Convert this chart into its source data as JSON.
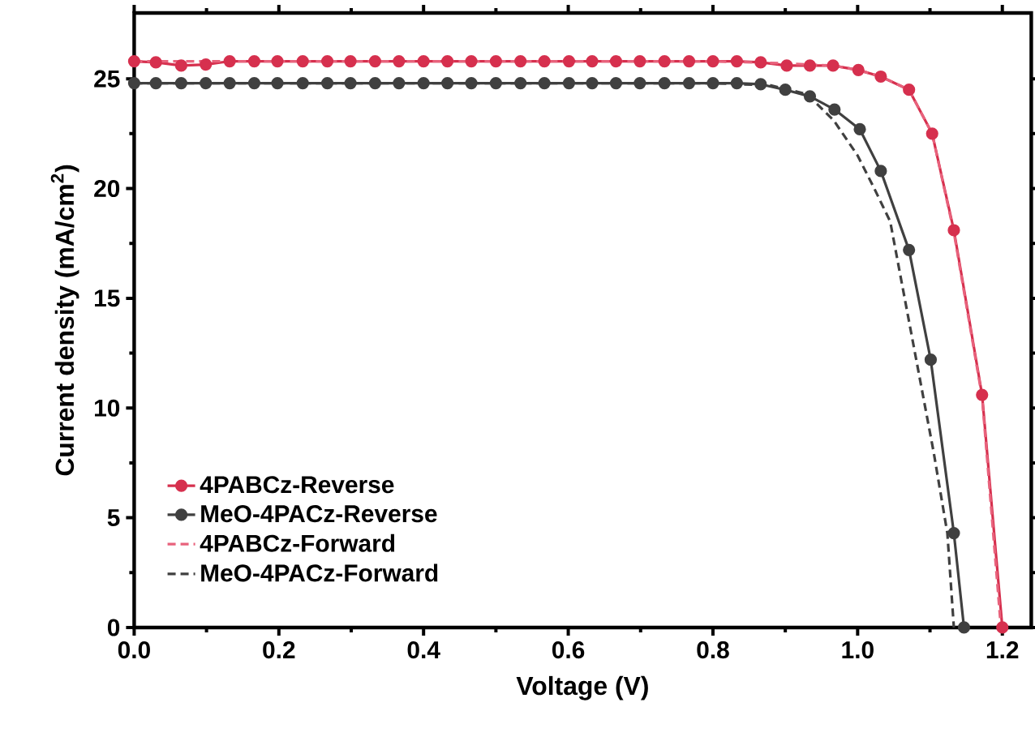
{
  "chart_data": {
    "type": "line",
    "xlabel": "Voltage (V)",
    "ylabel": "Current density (mA/cm$^{2}$)",
    "xlim": [
      0,
      1.24
    ],
    "ylim": [
      0,
      28
    ],
    "xticks": [
      {
        "value": 0,
        "label": "0.0"
      },
      0.2,
      0.4,
      0.6,
      0.8,
      {
        "value": 1,
        "label": "1.0"
      },
      1.2
    ],
    "yticks": [
      0,
      5,
      10,
      15,
      20,
      25
    ],
    "legend": "bottom left",
    "grid": false,
    "series": [
      {
        "name": "4PABCz-Reverse",
        "color": "#d6304e",
        "marker": "circle",
        "line_style": "solid",
        "x": [
          0,
          0.03,
          0.065,
          0.099,
          0.132,
          0.166,
          0.198,
          0.233,
          0.267,
          0.299,
          0.333,
          0.366,
          0.4,
          0.433,
          0.466,
          0.5,
          0.534,
          0.567,
          0.601,
          0.633,
          0.666,
          0.699,
          0.733,
          0.767,
          0.8,
          0.833,
          0.866,
          0.902,
          0.934,
          0.966,
          1.001,
          1.032,
          1.071,
          1.103,
          1.133,
          1.172,
          1.2
        ],
        "values": [
          25.8,
          25.75,
          25.6,
          25.65,
          25.8,
          25.8,
          25.8,
          25.8,
          25.8,
          25.8,
          25.8,
          25.8,
          25.8,
          25.8,
          25.8,
          25.8,
          25.8,
          25.8,
          25.8,
          25.8,
          25.8,
          25.8,
          25.8,
          25.8,
          25.8,
          25.8,
          25.75,
          25.6,
          25.6,
          25.6,
          25.4,
          25.1,
          24.5,
          22.5,
          18.1,
          10.6,
          0
        ]
      },
      {
        "name": "MeO-4PACz-Reverse",
        "color": "#404040",
        "marker": "circle",
        "line_style": "solid",
        "x": [
          0,
          0.03,
          0.065,
          0.099,
          0.132,
          0.166,
          0.198,
          0.233,
          0.267,
          0.299,
          0.333,
          0.366,
          0.4,
          0.433,
          0.466,
          0.5,
          0.534,
          0.567,
          0.601,
          0.633,
          0.666,
          0.699,
          0.733,
          0.767,
          0.8,
          0.833,
          0.866,
          0.9,
          0.934,
          0.968,
          1.003,
          1.032,
          1.071,
          1.101,
          1.133,
          1.147
        ],
        "values": [
          24.8,
          24.8,
          24.8,
          24.8,
          24.8,
          24.8,
          24.8,
          24.8,
          24.8,
          24.8,
          24.8,
          24.8,
          24.8,
          24.8,
          24.8,
          24.8,
          24.8,
          24.8,
          24.8,
          24.8,
          24.8,
          24.8,
          24.8,
          24.8,
          24.8,
          24.8,
          24.75,
          24.5,
          24.2,
          23.6,
          22.7,
          20.8,
          17.2,
          12.2,
          4.3,
          0
        ]
      },
      {
        "name": "4PABCz-Forward",
        "color": "#e8627c",
        "marker": "none",
        "line_style": "dashed",
        "x": [
          0,
          0.2,
          0.4,
          0.6,
          0.8,
          0.9,
          0.966,
          1.001,
          1.032,
          1.071,
          1.103,
          1.133,
          1.172,
          1.198
        ],
        "values": [
          25.8,
          25.8,
          25.8,
          25.8,
          25.8,
          25.7,
          25.6,
          25.4,
          25.1,
          24.5,
          22.5,
          18.0,
          10.5,
          0
        ]
      },
      {
        "name": "MeO-4PACz-Forward",
        "color": "#404040",
        "marker": "none",
        "line_style": "dashed",
        "x": [
          0,
          0.2,
          0.4,
          0.6,
          0.8,
          0.88,
          0.93,
          0.967,
          1.0,
          1.023,
          1.045,
          1.065,
          1.085,
          1.105,
          1.124,
          1.133
        ],
        "values": [
          24.8,
          24.8,
          24.8,
          24.8,
          24.8,
          24.7,
          24.3,
          23.1,
          21.5,
          20.0,
          18.5,
          15.0,
          11.5,
          8.0,
          4.3,
          0
        ]
      }
    ]
  }
}
